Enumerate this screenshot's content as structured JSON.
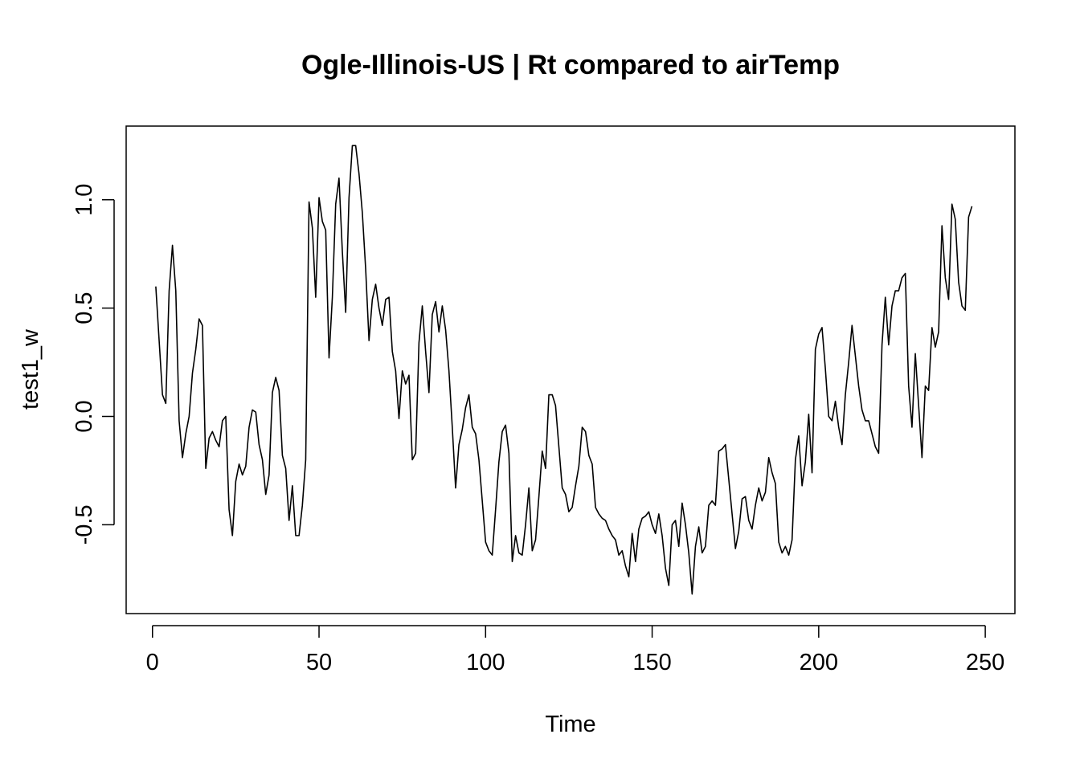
{
  "chart_data": {
    "type": "line",
    "title": "Ogle-Illinois-US | Rt compared to airTemp",
    "xlabel": "Time",
    "ylabel": "test1_w",
    "xlim": [
      -7.9,
      258.9
    ],
    "ylim": [
      -0.91,
      1.34
    ],
    "x_ticks": [
      0,
      50,
      100,
      150,
      200,
      250
    ],
    "x_tick_labels": [
      "0",
      "50",
      "100",
      "150",
      "200",
      "250"
    ],
    "y_ticks": [
      -0.5,
      0,
      0.5,
      1.0
    ],
    "y_tick_labels": [
      "-0.5",
      "0.0",
      "0.5",
      "1.0"
    ],
    "grid": false,
    "series": [
      {
        "color": "#000000",
        "x_start": 1,
        "values": [
          0.6,
          0.35,
          0.1,
          0.06,
          0.58,
          0.79,
          0.58,
          -0.02,
          -0.19,
          -0.08,
          0.0,
          0.2,
          0.31,
          0.45,
          0.42,
          -0.24,
          -0.1,
          -0.07,
          -0.11,
          -0.14,
          -0.02,
          0.0,
          -0.43,
          -0.55,
          -0.3,
          -0.22,
          -0.27,
          -0.23,
          -0.05,
          0.03,
          0.02,
          -0.13,
          -0.2,
          -0.36,
          -0.27,
          0.11,
          0.18,
          0.12,
          -0.18,
          -0.24,
          -0.48,
          -0.32,
          -0.55,
          -0.55,
          -0.41,
          -0.2,
          0.99,
          0.87,
          0.55,
          1.01,
          0.9,
          0.86,
          0.27,
          0.55,
          0.98,
          1.1,
          0.76,
          0.48,
          1.01,
          1.25,
          1.25,
          1.12,
          0.94,
          0.68,
          0.35,
          0.54,
          0.61,
          0.5,
          0.42,
          0.54,
          0.55,
          0.3,
          0.21,
          -0.01,
          0.21,
          0.15,
          0.19,
          -0.2,
          -0.17,
          0.34,
          0.51,
          0.3,
          0.11,
          0.47,
          0.53,
          0.39,
          0.51,
          0.4,
          0.21,
          -0.05,
          -0.33,
          -0.13,
          -0.06,
          0.04,
          0.1,
          -0.05,
          -0.08,
          -0.2,
          -0.39,
          -0.58,
          -0.62,
          -0.64,
          -0.43,
          -0.21,
          -0.07,
          -0.04,
          -0.17,
          -0.67,
          -0.55,
          -0.63,
          -0.64,
          -0.5,
          -0.33,
          -0.62,
          -0.57,
          -0.37,
          -0.16,
          -0.24,
          0.1,
          0.1,
          0.05,
          -0.14,
          -0.33,
          -0.36,
          -0.44,
          -0.42,
          -0.32,
          -0.23,
          -0.05,
          -0.07,
          -0.18,
          -0.22,
          -0.42,
          -0.45,
          -0.47,
          -0.48,
          -0.52,
          -0.55,
          -0.57,
          -0.64,
          -0.62,
          -0.69,
          -0.74,
          -0.54,
          -0.67,
          -0.52,
          -0.47,
          -0.46,
          -0.44,
          -0.5,
          -0.54,
          -0.45,
          -0.55,
          -0.7,
          -0.78,
          -0.5,
          -0.48,
          -0.6,
          -0.4,
          -0.5,
          -0.63,
          -0.82,
          -0.6,
          -0.51,
          -0.63,
          -0.6,
          -0.41,
          -0.39,
          -0.41,
          -0.16,
          -0.15,
          -0.13,
          -0.29,
          -0.45,
          -0.61,
          -0.53,
          -0.38,
          -0.37,
          -0.48,
          -0.52,
          -0.41,
          -0.33,
          -0.39,
          -0.35,
          -0.19,
          -0.26,
          -0.31,
          -0.58,
          -0.63,
          -0.6,
          -0.64,
          -0.57,
          -0.2,
          -0.09,
          -0.32,
          -0.21,
          0.01,
          -0.26,
          0.31,
          0.38,
          0.41,
          0.22,
          0.0,
          -0.02,
          0.07,
          -0.05,
          -0.13,
          0.1,
          0.25,
          0.42,
          0.28,
          0.14,
          0.03,
          -0.02,
          -0.02,
          -0.08,
          -0.14,
          -0.17,
          0.33,
          0.55,
          0.33,
          0.51,
          0.58,
          0.58,
          0.64,
          0.66,
          0.14,
          -0.05,
          0.29,
          0.05,
          -0.19,
          0.14,
          0.12,
          0.41,
          0.32,
          0.39,
          0.88,
          0.64,
          0.54,
          0.98,
          0.91,
          0.62,
          0.51,
          0.49,
          0.92,
          0.97
        ]
      }
    ]
  }
}
